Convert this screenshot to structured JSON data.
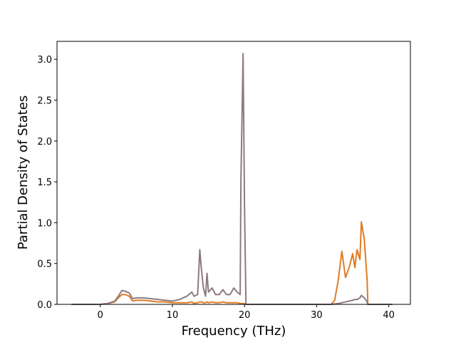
{
  "chart_data": {
    "type": "line",
    "xlabel": "Frequency (THz)",
    "ylabel": "Partial Density of States",
    "x": [
      -4,
      0,
      1,
      2,
      2.5,
      3,
      3.5,
      4,
      4.5,
      5,
      6,
      7,
      8,
      9,
      10,
      11,
      12,
      12.7,
      13,
      13.5,
      13.8,
      14,
      14.3,
      14.6,
      14.8,
      15,
      15.5,
      16,
      16.5,
      17,
      17.5,
      18,
      18.5,
      19,
      19.4,
      19.5,
      19.8,
      20,
      20.2,
      25,
      32,
      32.5,
      33,
      33.5,
      34,
      34.5,
      35,
      35.3,
      35.6,
      36,
      36.2,
      36.6,
      37,
      37.1,
      40.5
    ],
    "series": [
      {
        "color": "#e07b24",
        "values": [
          0,
          0,
          0.01,
          0.03,
          0.08,
          0.12,
          0.12,
          0.1,
          0.04,
          0.05,
          0.05,
          0.04,
          0.03,
          0.03,
          0.02,
          0.02,
          0.02,
          0.03,
          0.01,
          0.02,
          0.03,
          0.03,
          0.02,
          0.02,
          0.03,
          0.02,
          0.03,
          0.02,
          0.02,
          0.03,
          0.02,
          0.02,
          0.02,
          0.02,
          0.01,
          0.01,
          0.01,
          0.01,
          0,
          0,
          0,
          0.05,
          0.3,
          0.65,
          0.33,
          0.45,
          0.62,
          0.45,
          0.67,
          0.55,
          1.01,
          0.8,
          0.3,
          0,
          0
        ]
      },
      {
        "color": "#8c7b80",
        "values": [
          0,
          0,
          0.01,
          0.04,
          0.1,
          0.17,
          0.16,
          0.14,
          0.07,
          0.08,
          0.08,
          0.07,
          0.06,
          0.05,
          0.04,
          0.06,
          0.1,
          0.15,
          0.1,
          0.12,
          0.67,
          0.45,
          0.2,
          0.1,
          0.38,
          0.15,
          0.2,
          0.12,
          0.12,
          0.18,
          0.12,
          0.12,
          0.2,
          0.15,
          0.12,
          1.5,
          3.07,
          1.2,
          0,
          0,
          0,
          0.005,
          0.01,
          0.02,
          0.03,
          0.04,
          0.05,
          0.06,
          0.06,
          0.08,
          0.11,
          0.08,
          0.03,
          0,
          0
        ]
      }
    ],
    "xlim": [
      -6,
      43
    ],
    "xticks": [
      0,
      10,
      20,
      30,
      40
    ],
    "ylim": [
      0,
      3.22
    ],
    "yticks": [
      {
        "value": 0,
        "label": "0.0"
      },
      {
        "value": 0.5,
        "label": "0.5"
      },
      {
        "value": 1,
        "label": "1.0"
      },
      {
        "value": 1.5,
        "label": "1.5"
      },
      {
        "value": 2,
        "label": "2.0"
      },
      {
        "value": 2.5,
        "label": "2.5"
      },
      {
        "value": 3,
        "label": "3.0"
      }
    ],
    "grid": false
  }
}
